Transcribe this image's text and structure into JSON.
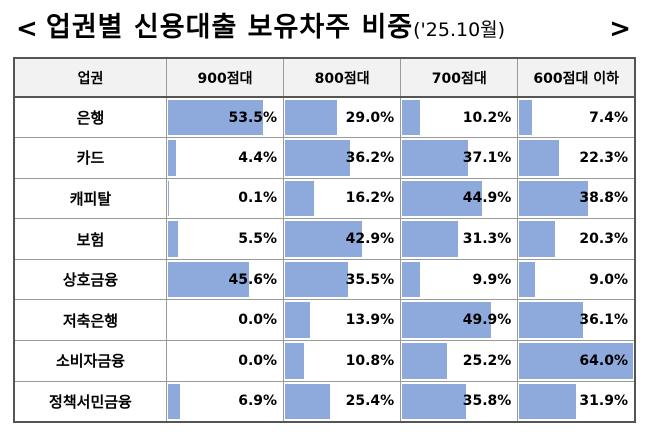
{
  "title": {
    "left_bracket": "<",
    "main": "업권별 신용대출 보유차주 비중",
    "sub": "('25.10월)",
    "right_bracket": ">"
  },
  "table": {
    "headers": [
      "업권",
      "900점대",
      "800점대",
      "700점대",
      "600점대 이하"
    ],
    "rows": [
      {
        "sector": "은행",
        "values": [
          "53.5%",
          "29.0%",
          "10.2%",
          "7.4%"
        ]
      },
      {
        "sector": "카드",
        "values": [
          "4.4%",
          "36.2%",
          "37.1%",
          "22.3%"
        ]
      },
      {
        "sector": "캐피탈",
        "values": [
          "0.1%",
          "16.2%",
          "44.9%",
          "38.8%"
        ]
      },
      {
        "sector": "보험",
        "values": [
          "5.5%",
          "42.9%",
          "31.3%",
          "20.3%"
        ]
      },
      {
        "sector": "상호금융",
        "values": [
          "45.6%",
          "35.5%",
          "9.9%",
          "9.0%"
        ]
      },
      {
        "sector": "저축은행",
        "values": [
          "0.0%",
          "13.9%",
          "49.9%",
          "36.1%"
        ]
      },
      {
        "sector": "소비자금융",
        "values": [
          "0.0%",
          "10.8%",
          "25.2%",
          "64.0%"
        ]
      },
      {
        "sector": "정책서민금융",
        "values": [
          "6.9%",
          "25.4%",
          "35.8%",
          "31.9%"
        ]
      }
    ]
  },
  "colors": {
    "bar": "#8ea9db",
    "header_bg": "#f2f2f2"
  }
}
